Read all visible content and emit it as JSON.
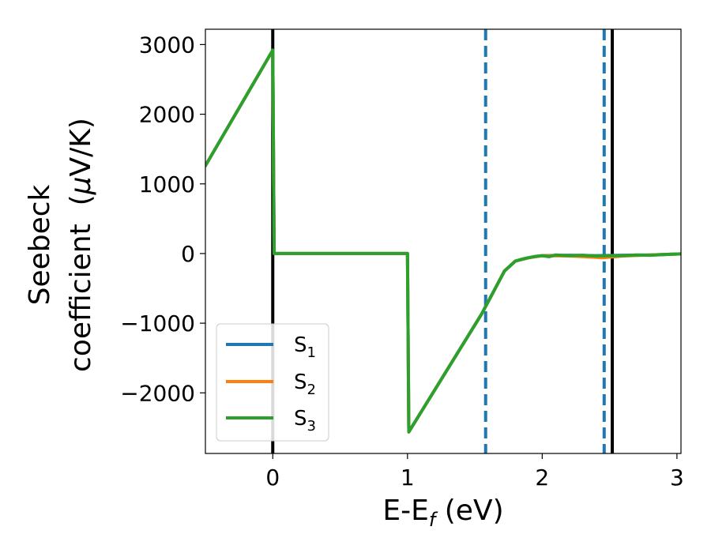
{
  "chart_data": {
    "type": "line",
    "xlabel": {
      "main": "E-E",
      "sub": "f",
      "tail": " (eV)"
    },
    "ylabel": {
      "line1": "Seebeck",
      "line2": "coefficient  (",
      "mu": "μ",
      "unit": "V/K)"
    },
    "xlim": [
      -0.5,
      3.03
    ],
    "ylim": [
      -2870,
      3220
    ],
    "x_ticks": [
      0,
      1,
      2,
      3
    ],
    "x_tick_labels": [
      "0",
      "1",
      "2",
      "3"
    ],
    "y_ticks": [
      -2000,
      -1000,
      0,
      1000,
      2000,
      3000
    ],
    "y_tick_labels": [
      "−2000",
      "−1000",
      "0",
      "1000",
      "2000",
      "3000"
    ],
    "vlines": [
      {
        "x": 0.0,
        "style": "solid",
        "color": "#000000"
      },
      {
        "x": 2.52,
        "style": "solid",
        "color": "#000000"
      },
      {
        "x": 1.58,
        "style": "dashed",
        "color": "#1f77b4"
      },
      {
        "x": 2.46,
        "style": "dashed",
        "color": "#1f77b4"
      }
    ],
    "legend_position": "lower-left",
    "series": [
      {
        "name": "S",
        "sub": "1",
        "color": "#1f77b4",
        "points": [
          [
            -0.5,
            1260
          ],
          [
            0.0,
            2920
          ],
          [
            0.01,
            0
          ],
          [
            1.0,
            0
          ],
          [
            1.01,
            -2560
          ],
          [
            1.55,
            -870
          ],
          [
            1.72,
            -250
          ],
          [
            1.8,
            -110
          ],
          [
            1.9,
            -60
          ],
          [
            2.0,
            -30
          ],
          [
            2.2,
            -25
          ],
          [
            2.4,
            -30
          ],
          [
            2.6,
            -25
          ],
          [
            2.8,
            -20
          ],
          [
            3.03,
            -5
          ]
        ]
      },
      {
        "name": "S",
        "sub": "2",
        "color": "#ff7f0e",
        "points": [
          [
            -0.5,
            1260
          ],
          [
            0.0,
            2920
          ],
          [
            0.01,
            0
          ],
          [
            1.0,
            0
          ],
          [
            1.01,
            -2560
          ],
          [
            1.55,
            -870
          ],
          [
            1.72,
            -250
          ],
          [
            1.8,
            -110
          ],
          [
            1.9,
            -60
          ],
          [
            2.0,
            -30
          ],
          [
            2.2,
            -35
          ],
          [
            2.35,
            -50
          ],
          [
            2.45,
            -60
          ],
          [
            2.6,
            -35
          ],
          [
            2.8,
            -20
          ],
          [
            3.03,
            -5
          ]
        ]
      },
      {
        "name": "S",
        "sub": "3",
        "color": "#2ca02c",
        "points": [
          [
            -0.5,
            1260
          ],
          [
            0.0,
            2920
          ],
          [
            0.01,
            0
          ],
          [
            1.0,
            0
          ],
          [
            1.01,
            -2560
          ],
          [
            1.55,
            -870
          ],
          [
            1.72,
            -250
          ],
          [
            1.8,
            -110
          ],
          [
            1.85,
            -80
          ],
          [
            1.9,
            -60
          ],
          [
            1.95,
            -40
          ],
          [
            2.0,
            -30
          ],
          [
            2.05,
            -45
          ],
          [
            2.1,
            -20
          ],
          [
            2.2,
            -30
          ],
          [
            2.3,
            -25
          ],
          [
            2.4,
            -35
          ],
          [
            2.5,
            -30
          ],
          [
            2.6,
            -30
          ],
          [
            2.7,
            -20
          ],
          [
            2.8,
            -25
          ],
          [
            2.9,
            -15
          ],
          [
            3.03,
            -5
          ]
        ]
      }
    ]
  }
}
